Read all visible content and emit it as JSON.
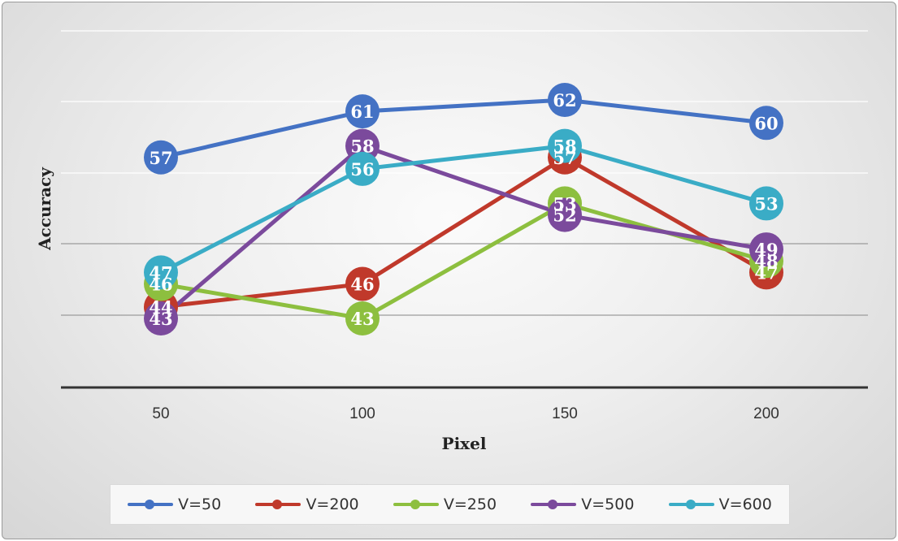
{
  "chart_data": {
    "type": "line",
    "title": "",
    "xlabel": "Pixel",
    "ylabel": "Accuracy",
    "categories": [
      "50",
      "100",
      "150",
      "200"
    ],
    "ylim": [
      37,
      68
    ],
    "grid": true,
    "legend_position": "bottom",
    "series": [
      {
        "name": "V=50",
        "color": "#4472c4",
        "values": [
          57,
          61,
          62,
          60
        ]
      },
      {
        "name": "V=200",
        "color": "#c0392b",
        "values": [
          44,
          46,
          57,
          47
        ]
      },
      {
        "name": "V=250",
        "color": "#8dbf3f",
        "values": [
          46,
          43,
          53,
          48
        ]
      },
      {
        "name": "V=500",
        "color": "#7b4a9c",
        "values": [
          43,
          58,
          52,
          49
        ]
      },
      {
        "name": "V=600",
        "color": "#3aacc6",
        "values": [
          47,
          56,
          58,
          53
        ]
      }
    ]
  }
}
